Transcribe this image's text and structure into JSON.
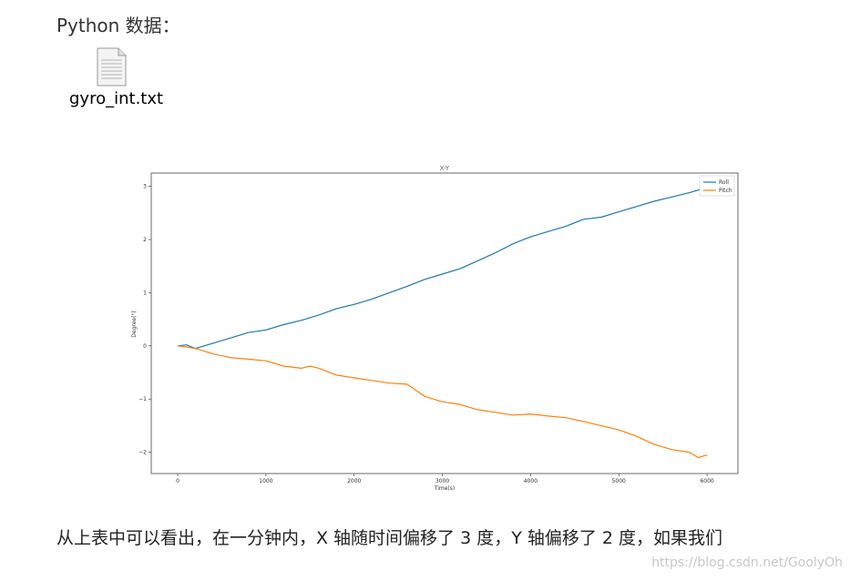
{
  "heading": "Python 数据：",
  "attachment": {
    "file_name": "gyro_int.txt",
    "icon": "text-file-icon"
  },
  "chart_data": {
    "type": "line",
    "title": "X-Y",
    "xlabel": "Time(s)",
    "ylabel": "Degree(°)",
    "xlim": [
      -300,
      6350
    ],
    "ylim": [
      -2.4,
      3.25
    ],
    "x_ticks": [
      0,
      1000,
      2000,
      3000,
      4000,
      5000,
      6000
    ],
    "y_ticks": [
      3,
      2,
      1,
      0,
      -1,
      -2
    ],
    "y_tick_labels": [
      "3",
      "2",
      "1",
      "0",
      "−1",
      "−2"
    ],
    "legend": "top-right",
    "grid": false,
    "series": [
      {
        "name": "Roll",
        "color": "#1f77b4",
        "x": [
          0,
          100,
          200,
          400,
          600,
          800,
          1000,
          1200,
          1400,
          1600,
          1800,
          2000,
          2200,
          2400,
          2600,
          2800,
          3000,
          3200,
          3400,
          3600,
          3800,
          4000,
          4200,
          4400,
          4600,
          4800,
          5000,
          5200,
          5400,
          5600,
          5800,
          6000
        ],
        "y": [
          0.0,
          0.02,
          -0.05,
          0.05,
          0.15,
          0.25,
          0.3,
          0.4,
          0.48,
          0.58,
          0.7,
          0.78,
          0.88,
          1.0,
          1.12,
          1.25,
          1.35,
          1.45,
          1.6,
          1.75,
          1.92,
          2.05,
          2.15,
          2.25,
          2.38,
          2.42,
          2.52,
          2.62,
          2.72,
          2.8,
          2.88,
          2.98
        ]
      },
      {
        "name": "Pitch",
        "color": "#ff7f0e",
        "x": [
          0,
          100,
          200,
          400,
          600,
          800,
          1000,
          1200,
          1400,
          1500,
          1600,
          1800,
          2000,
          2200,
          2400,
          2600,
          2800,
          3000,
          3200,
          3400,
          3600,
          3800,
          4000,
          4200,
          4400,
          4600,
          4800,
          5000,
          5200,
          5400,
          5600,
          5800,
          5900,
          6000
        ],
        "y": [
          0.0,
          -0.02,
          -0.05,
          -0.15,
          -0.22,
          -0.25,
          -0.28,
          -0.38,
          -0.42,
          -0.38,
          -0.42,
          -0.55,
          -0.6,
          -0.65,
          -0.7,
          -0.72,
          -0.95,
          -1.05,
          -1.1,
          -1.2,
          -1.25,
          -1.3,
          -1.28,
          -1.32,
          -1.35,
          -1.42,
          -1.5,
          -1.58,
          -1.7,
          -1.85,
          -1.95,
          -2.0,
          -2.1,
          -2.05
        ]
      }
    ]
  },
  "body_text": "从上表中可以看出，在一分钟内，X 轴随时间偏移了 3 度，Y 轴偏移了 2 度，如果我们",
  "watermark": "https://blog.csdn.net/GoolyOh"
}
